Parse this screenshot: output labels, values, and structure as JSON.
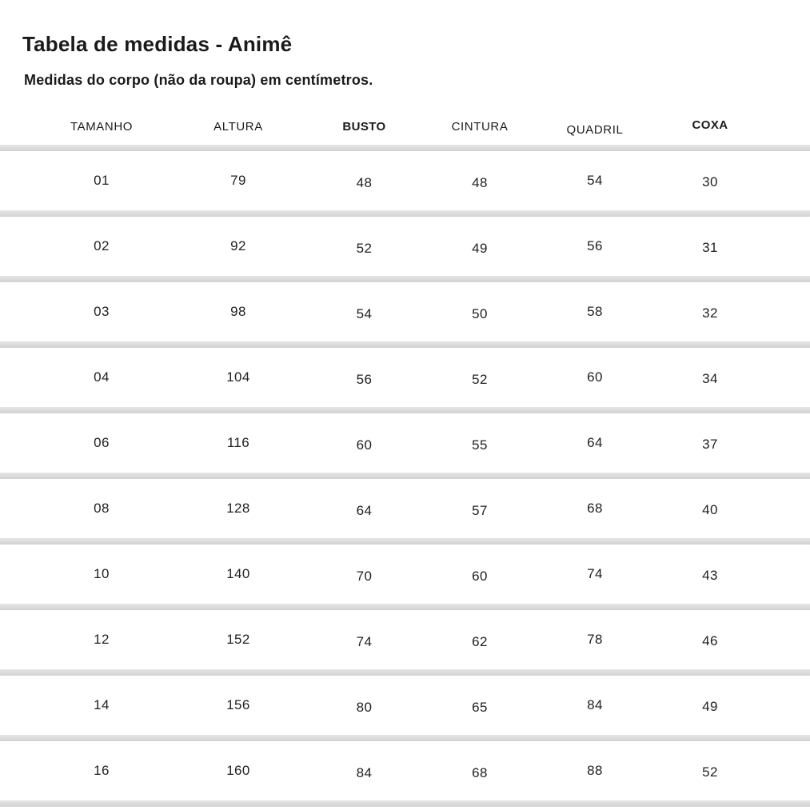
{
  "page": {
    "title": "Tabela de medidas - Animê",
    "subtitle": "Medidas do corpo (não da roupa) em centímetros."
  },
  "table": {
    "columns": [
      {
        "label": "TAMANHO"
      },
      {
        "label": "ALTURA"
      },
      {
        "label": "BUSTO"
      },
      {
        "label": "CINTURA"
      },
      {
        "label": "QUADRIL"
      },
      {
        "label": "COXA"
      }
    ],
    "rows": [
      [
        "01",
        "79",
        "48",
        "48",
        "54",
        "30"
      ],
      [
        "02",
        "92",
        "52",
        "49",
        "56",
        "31"
      ],
      [
        "03",
        "98",
        "54",
        "50",
        "58",
        "32"
      ],
      [
        "04",
        "104",
        "56",
        "52",
        "60",
        "34"
      ],
      [
        "06",
        "116",
        "60",
        "55",
        "64",
        "37"
      ],
      [
        "08",
        "128",
        "64",
        "57",
        "68",
        "40"
      ],
      [
        "10",
        "140",
        "70",
        "60",
        "74",
        "43"
      ],
      [
        "12",
        "152",
        "74",
        "62",
        "78",
        "46"
      ],
      [
        "14",
        "156",
        "80",
        "65",
        "84",
        "49"
      ],
      [
        "16",
        "160",
        "84",
        "68",
        "88",
        "52"
      ]
    ]
  },
  "chart_data": {
    "type": "table",
    "title": "Tabela de medidas - Animê",
    "subtitle": "Medidas do corpo (não da roupa) em centímetros.",
    "unit": "centímetros",
    "columns": [
      "TAMANHO",
      "ALTURA",
      "BUSTO",
      "CINTURA",
      "QUADRIL",
      "COXA"
    ],
    "rows": [
      [
        "01",
        79,
        48,
        48,
        54,
        30
      ],
      [
        "02",
        92,
        52,
        49,
        56,
        31
      ],
      [
        "03",
        98,
        54,
        50,
        58,
        32
      ],
      [
        "04",
        104,
        56,
        52,
        60,
        34
      ],
      [
        "06",
        116,
        60,
        55,
        64,
        37
      ],
      [
        "08",
        128,
        64,
        57,
        68,
        40
      ],
      [
        "10",
        140,
        70,
        60,
        74,
        43
      ],
      [
        "12",
        152,
        74,
        62,
        78,
        46
      ],
      [
        "14",
        156,
        80,
        65,
        84,
        49
      ],
      [
        "16",
        160,
        84,
        68,
        88,
        52
      ]
    ]
  },
  "colors": {
    "background": "#ffffff",
    "text": "#1e1e1e",
    "separator": "#d9d9d9"
  }
}
